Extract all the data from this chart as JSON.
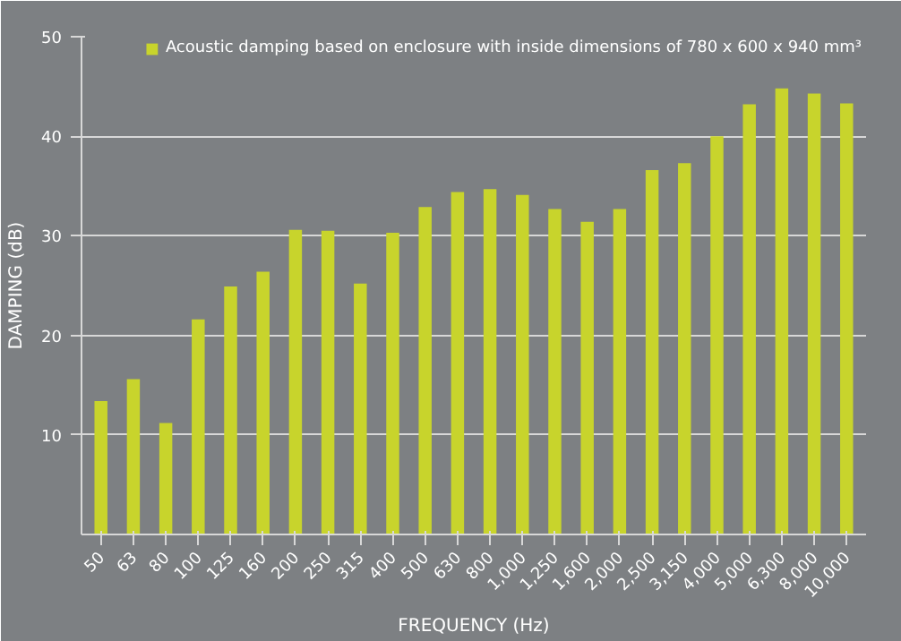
{
  "chart_data": {
    "type": "bar",
    "xlabel": "FREQUENCY (Hz)",
    "ylabel": "DAMPING (dB)",
    "categories": [
      "50",
      "63",
      "80",
      "100",
      "125",
      "160",
      "200",
      "250",
      "315",
      "400",
      "500",
      "630",
      "800",
      "1,000",
      "1,250",
      "1,600",
      "2,000",
      "2,500",
      "3,150",
      "4,000",
      "5,000",
      "6,300",
      "8,000",
      "10,000"
    ],
    "series": [
      {
        "name": "Acoustic damping based on enclosure with inside dimensions of 780 x 600 x 940 mm³",
        "color": "#c8d42c",
        "values": [
          13.4,
          15.6,
          11.2,
          21.6,
          24.9,
          26.4,
          30.6,
          30.5,
          25.2,
          30.3,
          32.9,
          34.4,
          34.7,
          34.1,
          32.7,
          31.4,
          32.7,
          36.6,
          37.3,
          40.0,
          43.2,
          44.8,
          44.3,
          43.3
        ]
      }
    ],
    "ylim": [
      0,
      50
    ],
    "yticks": [
      10,
      20,
      30,
      40,
      50
    ],
    "grid": "y",
    "legend": "top right"
  }
}
